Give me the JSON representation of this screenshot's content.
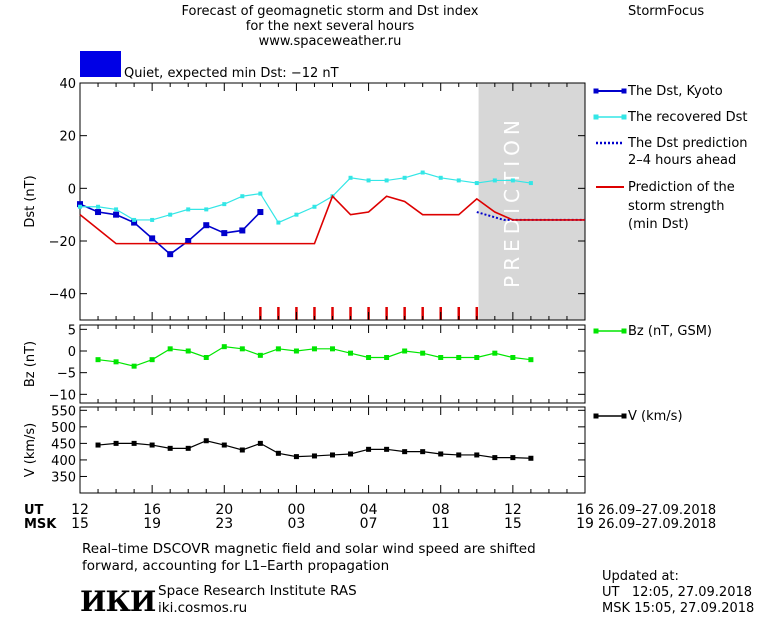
{
  "header": {
    "title_lines": [
      "Forecast of geomagnetic storm and Dst index",
      "for the next several hours",
      "www.spaceweather.ru"
    ],
    "brand": "StormFocus",
    "status_text": "Quiet, expected min Dst: −12 nT",
    "status_color": "#0000e6"
  },
  "colors": {
    "dst_kyoto": "#0000cc",
    "dst_recovered": "#33e6e6",
    "dst_prediction": "#0000cc",
    "storm_strength": "#dd0000",
    "bz": "#00e600",
    "v": "#000000",
    "prediction_band": "#d7d7d7"
  },
  "chart_data": [
    {
      "type": "line",
      "panel": "dst",
      "ylabel": "Dst (nT)",
      "ylim": [
        -50,
        40
      ],
      "yticks": [
        40,
        20,
        0,
        -20,
        -40
      ],
      "xlim": [
        12,
        40
      ],
      "prediction_label": "PREDICTION",
      "prediction_start": 34.1,
      "storm_markers_x": [
        22,
        23,
        24,
        25,
        26,
        27,
        28,
        29,
        30,
        31,
        32,
        33,
        34
      ],
      "series": [
        {
          "name": "The Dst, Kyoto",
          "x": [
            12,
            13,
            14,
            15,
            16,
            17,
            18,
            19,
            20,
            21,
            22
          ],
          "y": [
            -6,
            -9,
            -10,
            -13,
            -19,
            -25,
            -20,
            -14,
            -17,
            -16,
            -9
          ]
        },
        {
          "name": "The recovered Dst",
          "x": [
            12,
            13,
            14,
            15,
            16,
            17,
            18,
            19,
            20,
            21,
            22,
            23,
            24,
            25,
            26,
            27,
            28,
            29,
            30,
            31,
            32,
            33,
            34,
            35,
            36,
            37
          ],
          "y": [
            -7,
            -7,
            -8,
            -12,
            -12,
            -10,
            -8,
            -8,
            -6,
            -3,
            -2,
            -13,
            -10,
            -7,
            -3,
            4,
            3,
            3,
            4,
            6,
            4,
            3,
            2,
            3,
            3,
            2
          ]
        },
        {
          "name": "The Dst prediction 2–4 hours ahead",
          "x": [
            34,
            34.5,
            35,
            35.5,
            36,
            37,
            38,
            39,
            40
          ],
          "y": [
            -9,
            -10,
            -11,
            -12,
            -12,
            -12,
            -12,
            -12,
            -12
          ]
        },
        {
          "name": "Prediction of the storm strength (min Dst)",
          "x": [
            12,
            14,
            19,
            22,
            25,
            26,
            27,
            28,
            29,
            30,
            31,
            32,
            33,
            34,
            35,
            36,
            40
          ],
          "y": [
            -10,
            -21,
            -21,
            -21,
            -21,
            -3,
            -10,
            -9,
            -3,
            -5,
            -10,
            -10,
            -10,
            -4,
            -9,
            -12,
            -12
          ]
        }
      ],
      "legend": [
        "The Dst, Kyoto",
        "The recovered Dst",
        "The Dst prediction",
        "2–4 hours ahead",
        "Prediction of the",
        "storm strength",
        "(min Dst)"
      ]
    },
    {
      "type": "line",
      "panel": "bz",
      "ylabel": "Bz (nT)",
      "ylim": [
        -12,
        6
      ],
      "yticks": [
        5,
        0,
        -5,
        -10
      ],
      "xlim": [
        12,
        40
      ],
      "series": [
        {
          "name": "Bz (nT, GSM)",
          "x": [
            13,
            14,
            15,
            16,
            17,
            18,
            19,
            20,
            21,
            22,
            23,
            24,
            25,
            26,
            27,
            28,
            29,
            30,
            31,
            32,
            33,
            34,
            35,
            36,
            37
          ],
          "y": [
            -2,
            -2.5,
            -3.5,
            -2,
            0.5,
            0,
            -1.5,
            1,
            0.5,
            -1,
            0.5,
            0,
            0.5,
            0.5,
            -0.5,
            -1.5,
            -1.5,
            0,
            -0.5,
            -1.5,
            -1.5,
            -1.5,
            -0.5,
            -1.5,
            -2
          ]
        }
      ],
      "legend": [
        "Bz (nT, GSM)"
      ]
    },
    {
      "type": "line",
      "panel": "v",
      "ylabel": "V (km/s)",
      "ylim": [
        300,
        560
      ],
      "yticks": [
        550,
        500,
        450,
        400,
        350
      ],
      "xlim": [
        12,
        40
      ],
      "series": [
        {
          "name": "V (km/s)",
          "x": [
            13,
            14,
            15,
            16,
            17,
            18,
            19,
            20,
            21,
            22,
            23,
            24,
            25,
            26,
            27,
            28,
            29,
            30,
            31,
            32,
            33,
            34,
            35,
            36,
            37
          ],
          "y": [
            445,
            450,
            450,
            445,
            435,
            435,
            458,
            445,
            430,
            450,
            420,
            410,
            412,
            415,
            418,
            432,
            432,
            425,
            425,
            418,
            415,
            415,
            407,
            407,
            405
          ]
        }
      ],
      "legend": [
        "V (km/s)"
      ]
    }
  ],
  "time_axis": {
    "x_positions": [
      12,
      16,
      20,
      24,
      28,
      32,
      36,
      40
    ],
    "ut_label": "UT",
    "ut_ticks": [
      "12",
      "16",
      "20",
      "00",
      "04",
      "08",
      "12",
      "16"
    ],
    "msk_label": "MSK",
    "msk_ticks": [
      "15",
      "19",
      "23",
      "03",
      "07",
      "11",
      "15",
      "19"
    ],
    "date_ut": "26.09–27.09.2018",
    "date_msk": "26.09–27.09.2018"
  },
  "footer": {
    "note_lines": [
      "Real–time DSCOVR magnetic field and solar wind speed are shifted",
      "forward, accounting for L1–Earth propagation"
    ],
    "logo_text": "ИКИ",
    "institute": "Space Research Institute RAS",
    "website": "iki.cosmos.ru",
    "updated_label": "Updated at:",
    "updated_ut": "UT   12:05, 27.09.2018",
    "updated_msk": "MSK 15:05, 27.09.2018"
  }
}
